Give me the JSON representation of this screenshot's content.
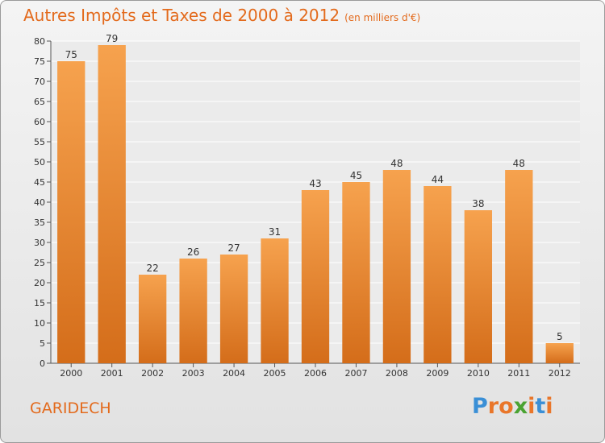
{
  "header": {
    "title": "Autres Impôts et Taxes de 2000 à 2012",
    "subtitle": "(en milliers d'€)"
  },
  "footer": {
    "place": "GARIDECH",
    "logo_letters": [
      "P",
      "r",
      "o",
      "x",
      "i",
      "t",
      "i"
    ],
    "logo_colors": [
      "#3a8fd6",
      "#e9762a",
      "#e9762a",
      "#4aa332",
      "#e9762a",
      "#3a8fd6",
      "#e9762a"
    ]
  },
  "colors": {
    "bar_top": "#f6a24e",
    "bar_bottom": "#d46d1a",
    "title": "#e36a1c"
  },
  "chart_data": {
    "type": "bar",
    "title": "Autres Impôts et Taxes de 2000 à 2012",
    "subtitle": "(en milliers d'€)",
    "categories": [
      "2000",
      "2001",
      "2002",
      "2003",
      "2004",
      "2005",
      "2006",
      "2007",
      "2008",
      "2009",
      "2010",
      "2011",
      "2012"
    ],
    "values": [
      75,
      79,
      22,
      26,
      27,
      31,
      43,
      45,
      48,
      44,
      38,
      48,
      5
    ],
    "ylim": [
      0,
      80
    ],
    "yticks": [
      0,
      5,
      10,
      15,
      20,
      25,
      30,
      35,
      40,
      45,
      50,
      55,
      60,
      65,
      70,
      75,
      80
    ],
    "grid": true,
    "data_labels": true
  }
}
